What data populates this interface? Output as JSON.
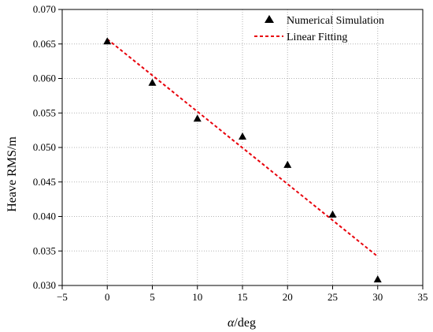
{
  "chart_data": {
    "type": "scatter",
    "xlabel_italic": "α",
    "xlabel_rest": "/deg",
    "ylabel": "Heave RMS/m",
    "xlim": [
      -5,
      35
    ],
    "ylim": [
      0.03,
      0.07
    ],
    "xticks": [
      -5,
      0,
      5,
      10,
      15,
      20,
      25,
      30,
      35
    ],
    "yticks": [
      0.03,
      0.035,
      0.04,
      0.045,
      0.05,
      0.055,
      0.06,
      0.065,
      0.07
    ],
    "ytick_decimals": 3,
    "grid": true,
    "legend_position": "top-right",
    "series": [
      {
        "name": "Numerical Simulation",
        "kind": "scatter",
        "marker": "triangle",
        "color": "#000000",
        "x": [
          0,
          5,
          10,
          15,
          20,
          25,
          30
        ],
        "y": [
          0.0654,
          0.0594,
          0.0542,
          0.0516,
          0.0475,
          0.0403,
          0.0309
        ]
      },
      {
        "name": "Linear Fitting",
        "kind": "line",
        "style": "dashed",
        "color": "#e8000b",
        "x": [
          0,
          30
        ],
        "y": [
          0.0657,
          0.0342
        ]
      }
    ]
  }
}
